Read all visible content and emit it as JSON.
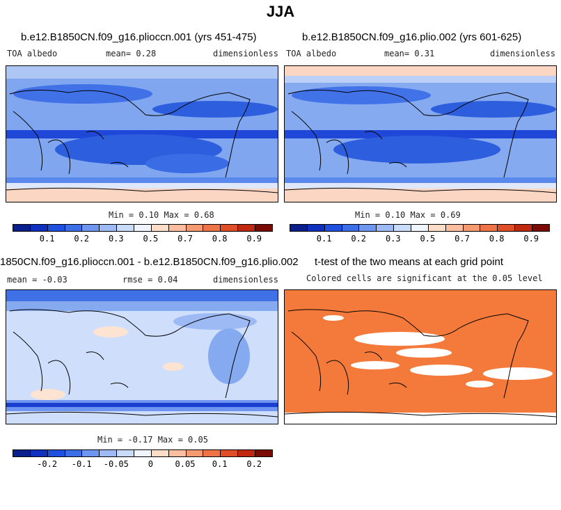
{
  "figure_title": "JJA",
  "panels": {
    "p1": {
      "title": "b.e12.B1850CN.f09_g16.plioccn.001 (yrs 451-475)",
      "left": "TOA albedo",
      "mean": "mean=   0.28",
      "right": "dimensionless",
      "minmax": "Min =   0.10 Max =   0.68"
    },
    "p2": {
      "title": "b.e12.B1850CN.f09_g16.plio.002 (yrs 601-625)",
      "left": "TOA albedo",
      "mean": "mean=   0.31",
      "right": "dimensionless",
      "minmax": "Min =   0.10 Max =   0.69"
    },
    "p3": {
      "title": "1850CN.f09_g16.plioccn.001 - b.e12.B1850CN.f09_g16.plio.002",
      "left": "mean =  -0.03",
      "mean": "rmse =   0.04",
      "right": "dimensionless",
      "minmax": "Min =  -0.17 Max =   0.05"
    },
    "p4": {
      "title": "t-test of the two means at each grid point",
      "subtitle": "Colored cells are significant at the 0.05 level"
    }
  },
  "colorbars": {
    "abs_colors": [
      "#0a1e8c",
      "#1030c0",
      "#2050e0",
      "#3c6ee8",
      "#6e96f0",
      "#9ebaf5",
      "#c8dcfa",
      "#f0f4fc",
      "#fddcc8",
      "#fbbea0",
      "#f59a70",
      "#ee7448",
      "#e04e28",
      "#c02810",
      "#7a0a04"
    ],
    "abs_ticks": [
      "0.1",
      "0.2",
      "0.3",
      "0.5",
      "0.7",
      "0.8",
      "0.9"
    ],
    "diff_colors": [
      "#0a1e8c",
      "#1030c0",
      "#2050e0",
      "#3c6ee8",
      "#6e96f0",
      "#9ebaf5",
      "#c8dcfa",
      "#f0f4fc",
      "#fddcc8",
      "#fbbea0",
      "#f59a70",
      "#ee7448",
      "#e04e28",
      "#c02810",
      "#7a0a04"
    ],
    "diff_ticks": [
      "-0.2",
      "-0.1",
      "-0.05",
      "0",
      "0.05",
      "0.1",
      "0.2"
    ]
  },
  "chart_data": [
    {
      "type": "heatmap",
      "title": "b.e12.B1850CN.f09_g16.plioccn.001 (yrs 451-475)",
      "variable": "TOA albedo",
      "units": "dimensionless",
      "mean": 0.28,
      "min": 0.1,
      "max": 0.68,
      "levels": [
        0.1,
        0.2,
        0.3,
        0.5,
        0.7,
        0.8,
        0.9
      ]
    },
    {
      "type": "heatmap",
      "title": "b.e12.B1850CN.f09_g16.plio.002 (yrs 601-625)",
      "variable": "TOA albedo",
      "units": "dimensionless",
      "mean": 0.31,
      "min": 0.1,
      "max": 0.69,
      "levels": [
        0.1,
        0.2,
        0.3,
        0.5,
        0.7,
        0.8,
        0.9
      ]
    },
    {
      "type": "heatmap",
      "title": "1850CN.f09_g16.plioccn.001 - b.e12.B1850CN.f09_g16.plio.002",
      "units": "dimensionless",
      "mean": -0.03,
      "rmse": 0.04,
      "min": -0.17,
      "max": 0.05,
      "levels": [
        -0.2,
        -0.1,
        -0.05,
        0,
        0.05,
        0.1,
        0.2
      ]
    },
    {
      "type": "heatmap",
      "title": "t-test of the two means at each grid point",
      "subtitle": "Colored cells are significant at the 0.05 level",
      "significant_color": "#f47a3c"
    }
  ]
}
